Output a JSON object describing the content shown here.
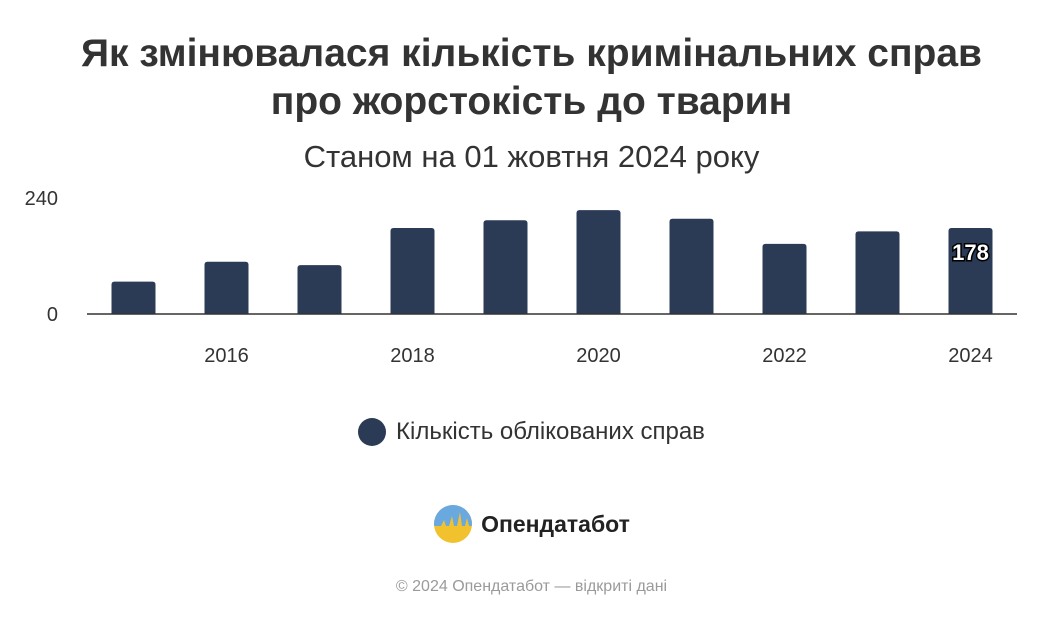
{
  "title_line1": "Як змінювалася кількість кримінальних справ",
  "title_line2": "про жорстокість до тварин",
  "subtitle": "Станом на 01 жовтня 2024 року",
  "colors": {
    "bar": "#2b3a55",
    "axis": "#333333",
    "text": "#333333"
  },
  "chart_data": {
    "type": "bar",
    "categories": [
      "2015",
      "2016",
      "2017",
      "2018",
      "2019",
      "2020",
      "2021",
      "2022",
      "2023",
      "2024"
    ],
    "values": [
      67,
      108,
      101,
      178,
      194,
      215,
      197,
      145,
      171,
      178
    ],
    "x_tick_labels": [
      "2016",
      "2018",
      "2020",
      "2022",
      "2024"
    ],
    "y_tick_labels": [
      "0",
      "240"
    ],
    "ylim": [
      0,
      240
    ],
    "data_labels": [
      {
        "category": "2024",
        "value": "178"
      }
    ],
    "legend": [
      "Кількість облікованих справ"
    ],
    "legend_position": "bottom-center",
    "grid": false
  },
  "brand_name": "Опендатабот",
  "copyright": "© 2024 Опендатабот — відкриті дані"
}
